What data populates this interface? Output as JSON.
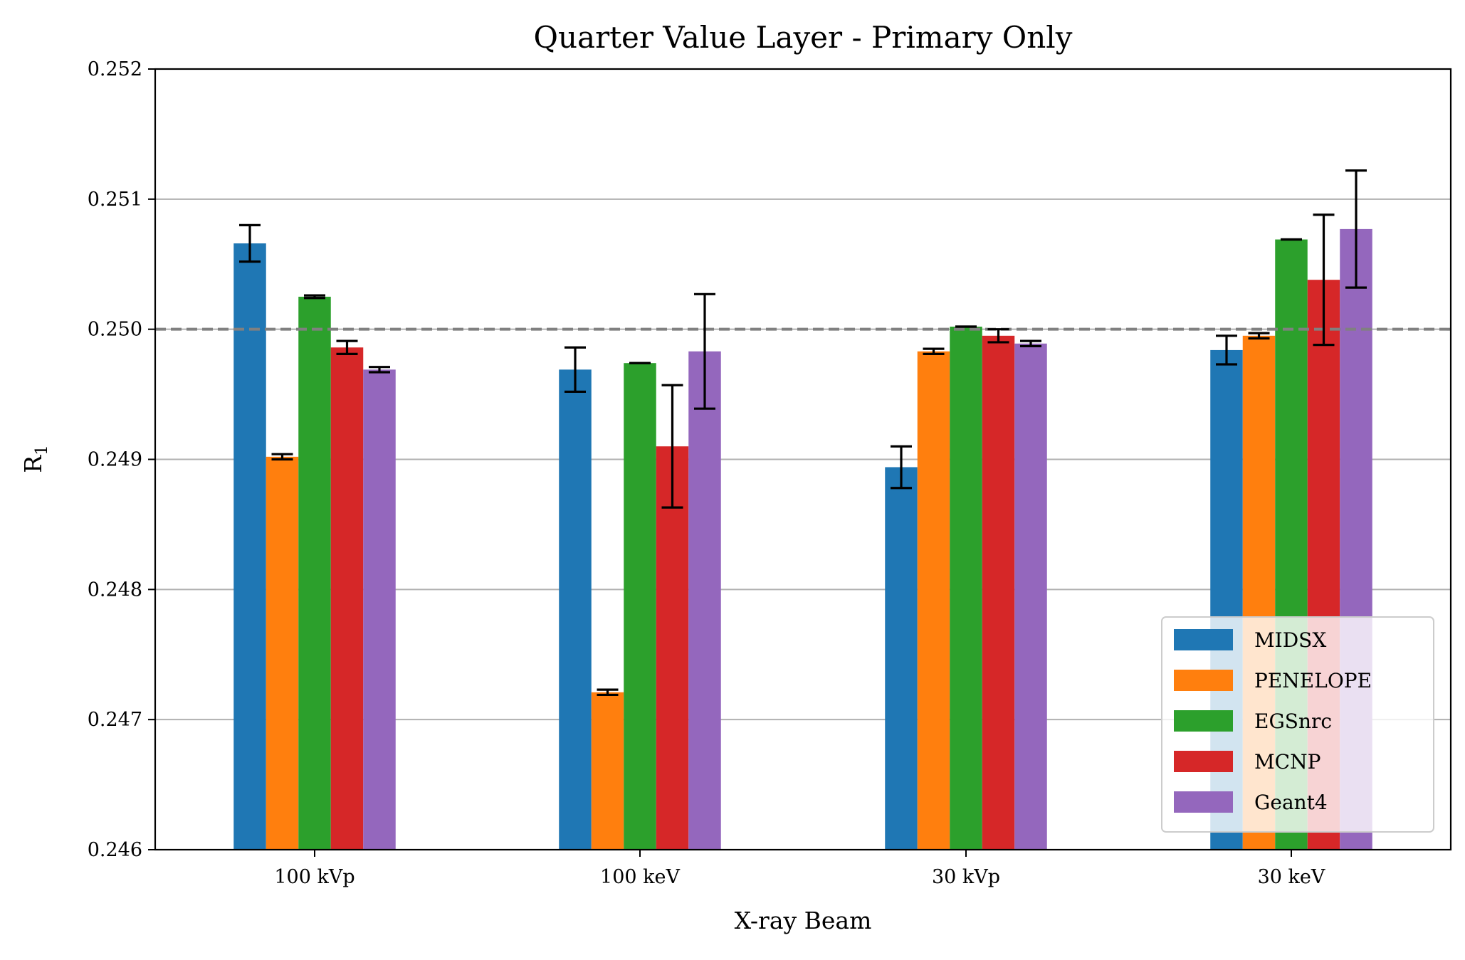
{
  "chart_data": {
    "type": "bar",
    "title": "Quarter Value Layer - Primary Only",
    "xlabel": "X-ray Beam",
    "ylabel_base": "R",
    "ylabel_sub": "1",
    "categories": [
      "100 kVp",
      "100 keV",
      "30 kVp",
      "30 keV"
    ],
    "ylim": [
      0.246,
      0.252
    ],
    "yticks": [
      0.246,
      0.247,
      0.248,
      0.249,
      0.25,
      0.251,
      0.252
    ],
    "ytick_labels": [
      "0.246",
      "0.247",
      "0.248",
      "0.249",
      "0.250",
      "0.251",
      "0.252"
    ],
    "grid": "horizontal",
    "reference_line": 0.25,
    "legend_position": "lower-right",
    "series": [
      {
        "name": "MIDSX",
        "color": "#1f77b4",
        "values": [
          0.25066,
          0.24969,
          0.24894,
          0.24984
        ],
        "errors": [
          0.00014,
          0.00017,
          0.00016,
          0.00011
        ]
      },
      {
        "name": "PENELOPE",
        "color": "#ff7f0e",
        "values": [
          0.24902,
          0.24721,
          0.24983,
          0.24995
        ],
        "errors": [
          2e-05,
          2e-05,
          2e-05,
          2e-05
        ]
      },
      {
        "name": "EGSnrc",
        "color": "#2ca02c",
        "values": [
          0.25025,
          0.24974,
          0.25002,
          0.25069
        ],
        "errors": [
          1e-05,
          0.0,
          0.0,
          0.0
        ]
      },
      {
        "name": "MCNP",
        "color": "#d62728",
        "values": [
          0.24986,
          0.2491,
          0.24995,
          0.25038
        ],
        "errors": [
          5e-05,
          0.00047,
          5e-05,
          0.0005
        ]
      },
      {
        "name": "Geant4",
        "color": "#9467bd",
        "values": [
          0.24969,
          0.24983,
          0.24989,
          0.25077
        ],
        "errors": [
          2e-05,
          0.00044,
          2e-05,
          0.00045
        ]
      }
    ]
  }
}
